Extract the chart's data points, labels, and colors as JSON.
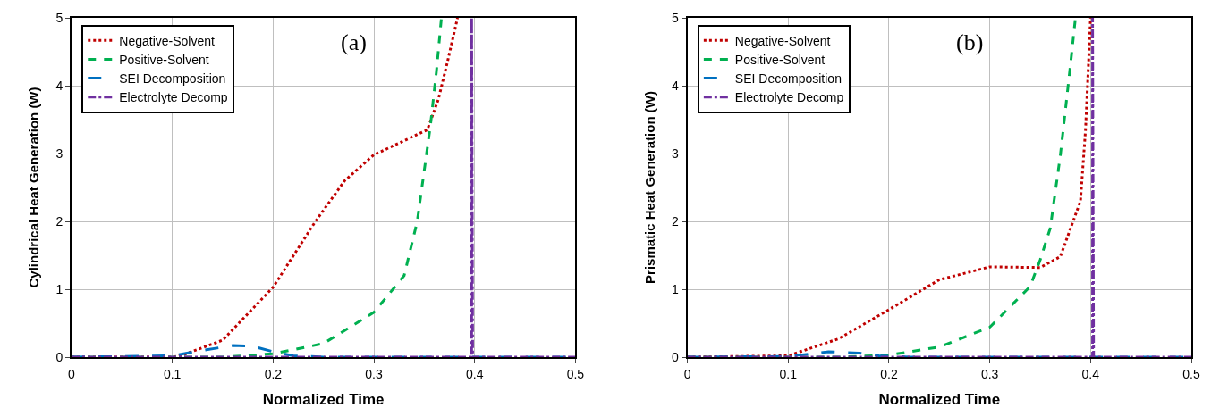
{
  "chart_data": [
    {
      "type": "line",
      "xlabel": "Normalized Time",
      "ylabel": "Cylindrical Heat Generation (W)",
      "annotations": [
        "(a)"
      ],
      "xlim": [
        0,
        0.5
      ],
      "ylim": [
        0,
        5
      ],
      "xticks": [
        0,
        0.1,
        0.2,
        0.3,
        0.4,
        0.5
      ],
      "yticks": [
        0,
        1,
        2,
        3,
        4,
        5
      ],
      "grid": true,
      "legend": "top left",
      "series": [
        {
          "name": "Negative-Solvent",
          "color": "#c00000",
          "line_style": "dotted",
          "x": [
            0,
            0.1,
            0.11,
            0.15,
            0.2,
            0.242,
            0.271,
            0.3,
            0.353,
            0.364,
            0.373,
            0.383
          ],
          "values": [
            0,
            0,
            0.03,
            0.25,
            1.03,
            2.0,
            2.6,
            2.98,
            3.35,
            3.8,
            4.35,
            5
          ]
        },
        {
          "name": "Positive-Solvent",
          "color": "#00b050",
          "line_style": "dashed",
          "x": [
            0,
            0.15,
            0.2,
            0.25,
            0.3,
            0.33,
            0.343,
            0.356,
            0.362,
            0.367
          ],
          "values": [
            0,
            0,
            0.05,
            0.2,
            0.66,
            1.2,
            2.0,
            3.4,
            4.2,
            5
          ]
        },
        {
          "name": "SEI Decomposition",
          "color": "#0070c0",
          "line_style": "dashed",
          "x": [
            0,
            0.1,
            0.13,
            0.16,
            0.18,
            0.2,
            0.22,
            0.25,
            0.5
          ],
          "values": [
            0,
            0.02,
            0.1,
            0.17,
            0.16,
            0.08,
            0.02,
            0,
            0
          ]
        },
        {
          "name": "Electrolyte Decomp",
          "color": "#7030a0",
          "line_style": "dashdot",
          "x": [
            0,
            0.397,
            0.397,
            0.398,
            0.5
          ],
          "values": [
            0,
            0,
            5,
            0,
            0
          ]
        }
      ]
    },
    {
      "type": "line",
      "xlabel": "Normalized Time",
      "ylabel": "Prismatic Heat Generation (W)",
      "annotations": [
        "(b)"
      ],
      "xlim": [
        0,
        0.5
      ],
      "ylim": [
        0,
        5
      ],
      "xticks": [
        0,
        0.1,
        0.2,
        0.3,
        0.4,
        0.5
      ],
      "yticks": [
        0,
        1,
        2,
        3,
        4,
        5
      ],
      "grid": true,
      "legend": "top left",
      "series": [
        {
          "name": "Negative-Solvent",
          "color": "#c00000",
          "line_style": "dotted",
          "x": [
            0,
            0.1,
            0.15,
            0.2,
            0.25,
            0.3,
            0.35,
            0.37,
            0.39,
            0.395,
            0.4
          ],
          "values": [
            0,
            0.02,
            0.27,
            0.7,
            1.14,
            1.33,
            1.32,
            1.48,
            2.3,
            3.35,
            5
          ]
        },
        {
          "name": "Positive-Solvent",
          "color": "#00b050",
          "line_style": "dashed",
          "x": [
            0,
            0.15,
            0.2,
            0.25,
            0.3,
            0.34,
            0.35,
            0.36,
            0.37,
            0.38,
            0.385
          ],
          "values": [
            0,
            0,
            0.03,
            0.15,
            0.44,
            1.04,
            1.43,
            1.9,
            2.97,
            4.3,
            5
          ]
        },
        {
          "name": "SEI Decomposition",
          "color": "#0070c0",
          "line_style": "dashed",
          "x": [
            0,
            0.1,
            0.14,
            0.17,
            0.19,
            0.22,
            0.5
          ],
          "values": [
            0,
            0.01,
            0.08,
            0.06,
            0.02,
            0,
            0
          ]
        },
        {
          "name": "Electrolyte Decomp",
          "color": "#7030a0",
          "line_style": "dashdot",
          "x": [
            0,
            0.402,
            0.402,
            0.403,
            0.5
          ],
          "values": [
            0,
            0,
            5,
            0,
            0
          ]
        }
      ]
    }
  ]
}
